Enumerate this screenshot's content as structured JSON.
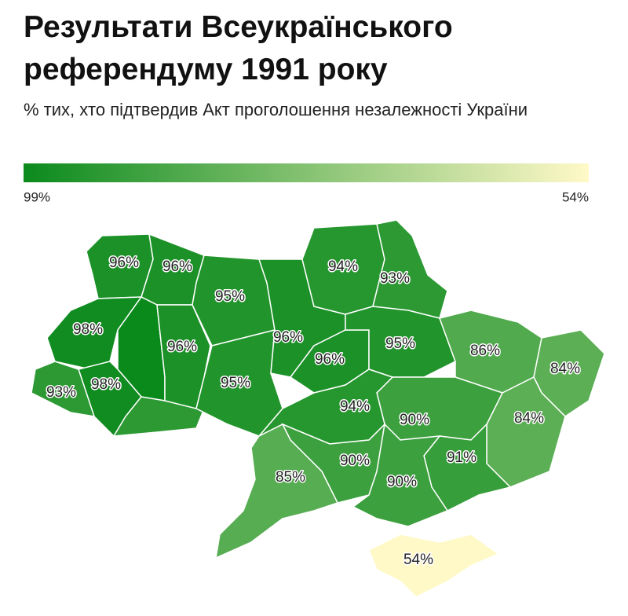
{
  "header": {
    "title": "Результати Всеукраїнського референдуму 1991 року",
    "subtitle": "% тих, хто підтвердив Акт проголошення незалежності України"
  },
  "legend": {
    "max": {
      "value": 99,
      "label": "99%"
    },
    "min": {
      "value": 54,
      "label": "54%"
    },
    "colors": [
      "#0b8a1c",
      "#fff9c8"
    ]
  },
  "regions": [
    {
      "value": 96,
      "label": "96%"
    },
    {
      "value": 96,
      "label": "96%"
    },
    {
      "value": 98,
      "label": "98%"
    },
    {
      "value": 99,
      "label": null
    },
    {
      "value": 98,
      "label": "98%"
    },
    {
      "value": 93,
      "label": "93%"
    },
    {
      "value": 93,
      "label": null
    },
    {
      "value": 96,
      "label": "96%"
    },
    {
      "value": 95,
      "label": "95%"
    },
    {
      "value": 95,
      "label": "95%"
    },
    {
      "value": 96,
      "label": "96%"
    },
    {
      "value": 94,
      "label": "94%"
    },
    {
      "value": 93,
      "label": "93%"
    },
    {
      "value": 96,
      "label": "96%"
    },
    {
      "value": 95,
      "label": "95%"
    },
    {
      "value": 86,
      "label": "86%"
    },
    {
      "value": 84,
      "label": "84%"
    },
    {
      "value": 84,
      "label": "84%"
    },
    {
      "value": 90,
      "label": "90%"
    },
    {
      "value": 94,
      "label": "94%"
    },
    {
      "value": 90,
      "label": "90%"
    },
    {
      "value": 85,
      "label": "85%"
    },
    {
      "value": 91,
      "label": "91%"
    },
    {
      "value": 90,
      "label": "90%"
    },
    {
      "value": 54,
      "label": "54%"
    }
  ]
}
